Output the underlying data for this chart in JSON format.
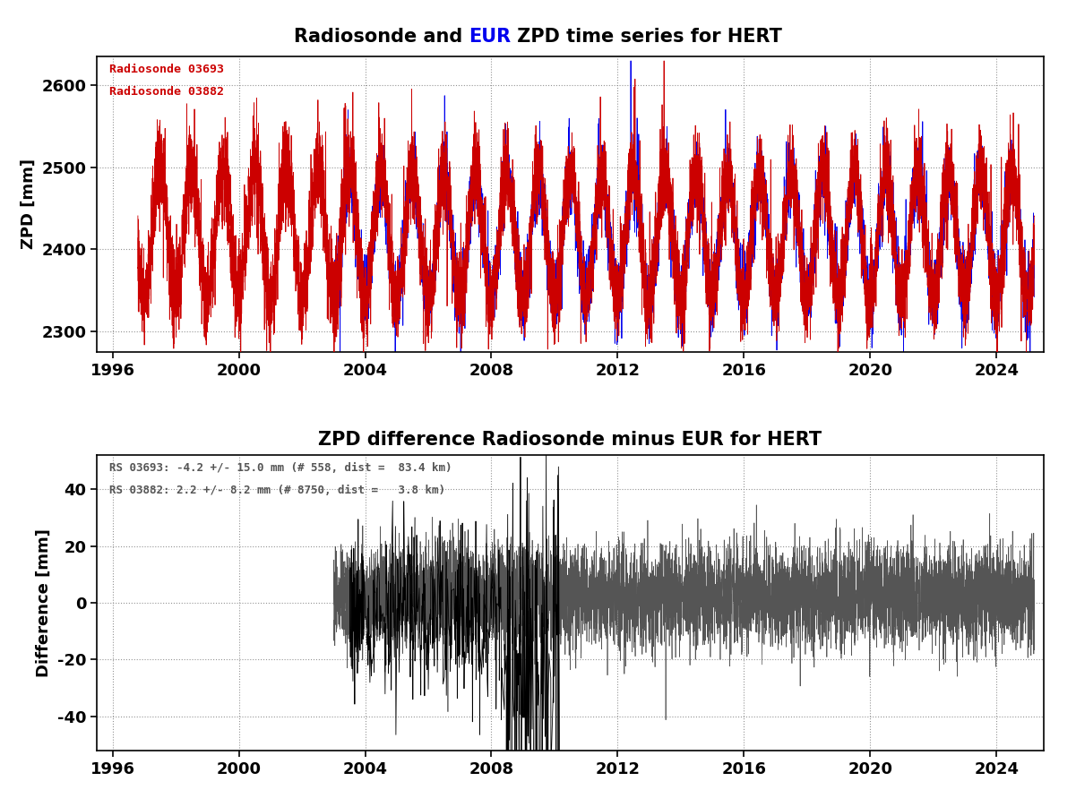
{
  "title1_parts": [
    "Radiosonde and ",
    "EUR",
    " ZPD time series for HERT"
  ],
  "title1_colors": [
    "black",
    "blue",
    "black"
  ],
  "title2": "ZPD difference Radiosonde minus EUR for HERT",
  "ylabel1": "ZPD [mm]",
  "ylabel2": "Difference [mm]",
  "ylim1": [
    2275,
    2635
  ],
  "ylim2": [
    -52,
    52
  ],
  "yticks1": [
    2300,
    2400,
    2500,
    2600
  ],
  "yticks2": [
    -40,
    -20,
    0,
    20,
    40
  ],
  "xlim": [
    1995.5,
    2025.5
  ],
  "xticks": [
    1996,
    2000,
    2004,
    2008,
    2012,
    2016,
    2020,
    2024
  ],
  "legend1_line1": "Radiosonde 03693",
  "legend1_line2": "Radiosonde 03882",
  "legend2_line1": "RS 03693: -4.2 +/- 15.0 mm (# 558, dist =  83.4 km)",
  "legend2_line2": "RS 03882: 2.2 +/- 8.2 mm (# 8750, dist =   3.8 km)",
  "color_red": "#CC0000",
  "color_blue": "#0000EE",
  "color_dark_gray": "#555555",
  "color_black": "#000000",
  "grid_color": "#888888",
  "background": "#ffffff"
}
